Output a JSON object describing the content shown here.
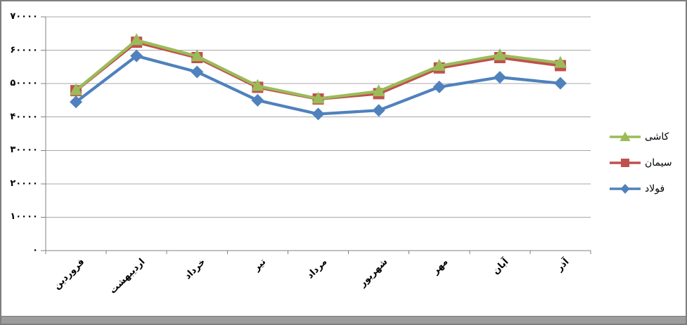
{
  "chart_data": {
    "type": "line",
    "title": "",
    "categories": [
      "فروردین",
      "اردیبهشت",
      "خرداد",
      "تیر",
      "مرداد",
      "شهریور",
      "مهر",
      "آبان",
      "آذر"
    ],
    "series": [
      {
        "id": "kashi",
        "name": "كاشی",
        "color": "#9BBB59",
        "marker": "triangle",
        "values": [
          48000,
          63000,
          58200,
          49300,
          45500,
          47700,
          55300,
          58500,
          56200
        ]
      },
      {
        "id": "siman",
        "name": "سیمان",
        "color": "#C0504D",
        "marker": "square",
        "values": [
          47900,
          62400,
          57800,
          48900,
          45400,
          47000,
          54700,
          57800,
          55400
        ]
      },
      {
        "id": "foulad",
        "name": "فولاد",
        "color": "#4F81BD",
        "marker": "diamond",
        "values": [
          44500,
          58300,
          53500,
          45000,
          40900,
          42000,
          49000,
          51900,
          50100
        ]
      }
    ],
    "ylim": [
      0,
      70000
    ],
    "ytick_step": 10000,
    "ytick_labels": [
      "۰",
      "۱۰۰۰۰",
      "۲۰۰۰۰",
      "۳۰۰۰۰",
      "۴۰۰۰۰",
      "۵۰۰۰۰",
      "۶۰۰۰۰",
      "۷۰۰۰۰"
    ],
    "grid": true,
    "legend_position": "right",
    "rtl": true,
    "colors": {
      "gridline": "#A8A8A8",
      "axis": "#808080",
      "text": "#000000",
      "background": "#FFFFFF",
      "frame_border": "#7E7E7E",
      "bottom_strip": "#9C9C9C"
    }
  }
}
